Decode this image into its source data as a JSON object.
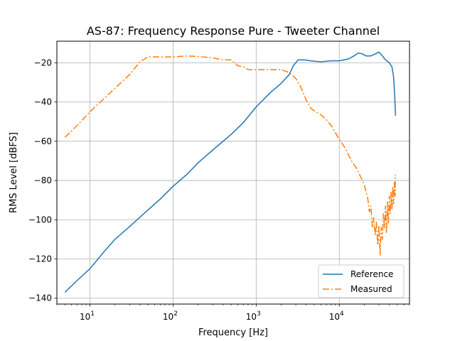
{
  "chart_data": {
    "type": "line",
    "title": "AS-87: Frequency Response Pure - Tweeter Channel",
    "xlabel": "Frequency [Hz]",
    "ylabel": "RMS Level [dBFS]",
    "xscale": "log",
    "xlim": [
      4,
      70000
    ],
    "ylim": [
      -143,
      -9
    ],
    "grid": true,
    "legend_position": "bottom-right",
    "x_ticks": [
      {
        "value": 10,
        "base": "10",
        "exp": "1"
      },
      {
        "value": 100,
        "base": "10",
        "exp": "2"
      },
      {
        "value": 1000,
        "base": "10",
        "exp": "3"
      },
      {
        "value": 10000,
        "base": "10",
        "exp": "4"
      }
    ],
    "y_ticks": [
      {
        "value": -20,
        "label": "−20"
      },
      {
        "value": -40,
        "label": "−40"
      },
      {
        "value": -60,
        "label": "−60"
      },
      {
        "value": -80,
        "label": "−80"
      },
      {
        "value": -100,
        "label": "−100"
      },
      {
        "value": -120,
        "label": "−120"
      },
      {
        "value": -140,
        "label": "−140"
      }
    ],
    "series": [
      {
        "name": "Reference",
        "color": "#1f77b4",
        "style": "solid",
        "points": [
          [
            5,
            -137
          ],
          [
            7,
            -131
          ],
          [
            10,
            -125
          ],
          [
            15,
            -116
          ],
          [
            20,
            -110
          ],
          [
            30,
            -103.5
          ],
          [
            50,
            -95
          ],
          [
            70,
            -89.5
          ],
          [
            100,
            -83
          ],
          [
            150,
            -76.5
          ],
          [
            200,
            -71
          ],
          [
            300,
            -64.5
          ],
          [
            500,
            -56.5
          ],
          [
            700,
            -50.5
          ],
          [
            1000,
            -42.5
          ],
          [
            1500,
            -35
          ],
          [
            2000,
            -30.5
          ],
          [
            2500,
            -26
          ],
          [
            2800,
            -21.5
          ],
          [
            3200,
            -18.5
          ],
          [
            3800,
            -18.5
          ],
          [
            4500,
            -19
          ],
          [
            6000,
            -19.5
          ],
          [
            8000,
            -19
          ],
          [
            10000,
            -19
          ],
          [
            13000,
            -18
          ],
          [
            15000,
            -16.5
          ],
          [
            17000,
            -15
          ],
          [
            19000,
            -15.5
          ],
          [
            21000,
            -16.5
          ],
          [
            24000,
            -16.5
          ],
          [
            27000,
            -15.5
          ],
          [
            30000,
            -14.5
          ],
          [
            33000,
            -16.5
          ],
          [
            36000,
            -18.5
          ],
          [
            40000,
            -20
          ],
          [
            43000,
            -22
          ],
          [
            45000,
            -27
          ],
          [
            46500,
            -37
          ],
          [
            47500,
            -47
          ]
        ]
      },
      {
        "name": "Measured",
        "color": "#ff7f0e",
        "style": "dashdot",
        "points": [
          [
            5,
            -58
          ],
          [
            7,
            -52
          ],
          [
            10,
            -45
          ],
          [
            15,
            -38
          ],
          [
            20,
            -33
          ],
          [
            30,
            -26
          ],
          [
            40,
            -19.5
          ],
          [
            50,
            -17
          ],
          [
            70,
            -17
          ],
          [
            100,
            -17
          ],
          [
            150,
            -16.5
          ],
          [
            200,
            -16.8
          ],
          [
            300,
            -17.5
          ],
          [
            400,
            -18.5
          ],
          [
            500,
            -18.5
          ],
          [
            600,
            -21.5
          ],
          [
            700,
            -22
          ],
          [
            800,
            -23.5
          ],
          [
            1000,
            -23.5
          ],
          [
            1500,
            -23.5
          ],
          [
            2000,
            -23.5
          ],
          [
            2500,
            -25
          ],
          [
            3000,
            -28
          ],
          [
            3500,
            -33
          ],
          [
            4000,
            -39
          ],
          [
            4500,
            -43
          ],
          [
            5000,
            -44.5
          ],
          [
            6000,
            -46.5
          ],
          [
            7000,
            -49
          ],
          [
            8000,
            -52
          ],
          [
            10000,
            -59
          ],
          [
            12000,
            -64
          ],
          [
            14000,
            -70
          ],
          [
            16000,
            -73.5
          ],
          [
            18000,
            -78
          ],
          [
            20000,
            -82
          ],
          [
            21000,
            -86
          ],
          [
            22000,
            -89
          ],
          [
            23000,
            -96
          ],
          [
            24000,
            -93
          ],
          [
            25000,
            -104
          ],
          [
            26000,
            -99
          ],
          [
            27000,
            -108
          ],
          [
            28000,
            -101
          ],
          [
            29000,
            -113
          ],
          [
            30000,
            -103
          ],
          [
            31000,
            -118
          ],
          [
            32000,
            -104
          ],
          [
            33000,
            -110
          ],
          [
            34000,
            -97
          ],
          [
            35000,
            -104
          ],
          [
            36000,
            -93
          ],
          [
            37000,
            -107
          ],
          [
            38000,
            -91
          ],
          [
            39000,
            -102
          ],
          [
            40000,
            -88
          ],
          [
            41000,
            -97
          ],
          [
            42000,
            -86
          ],
          [
            43000,
            -95
          ],
          [
            44000,
            -83
          ],
          [
            45000,
            -92
          ],
          [
            46000,
            -81
          ],
          [
            47000,
            -88
          ],
          [
            47500,
            -77
          ]
        ]
      }
    ]
  }
}
